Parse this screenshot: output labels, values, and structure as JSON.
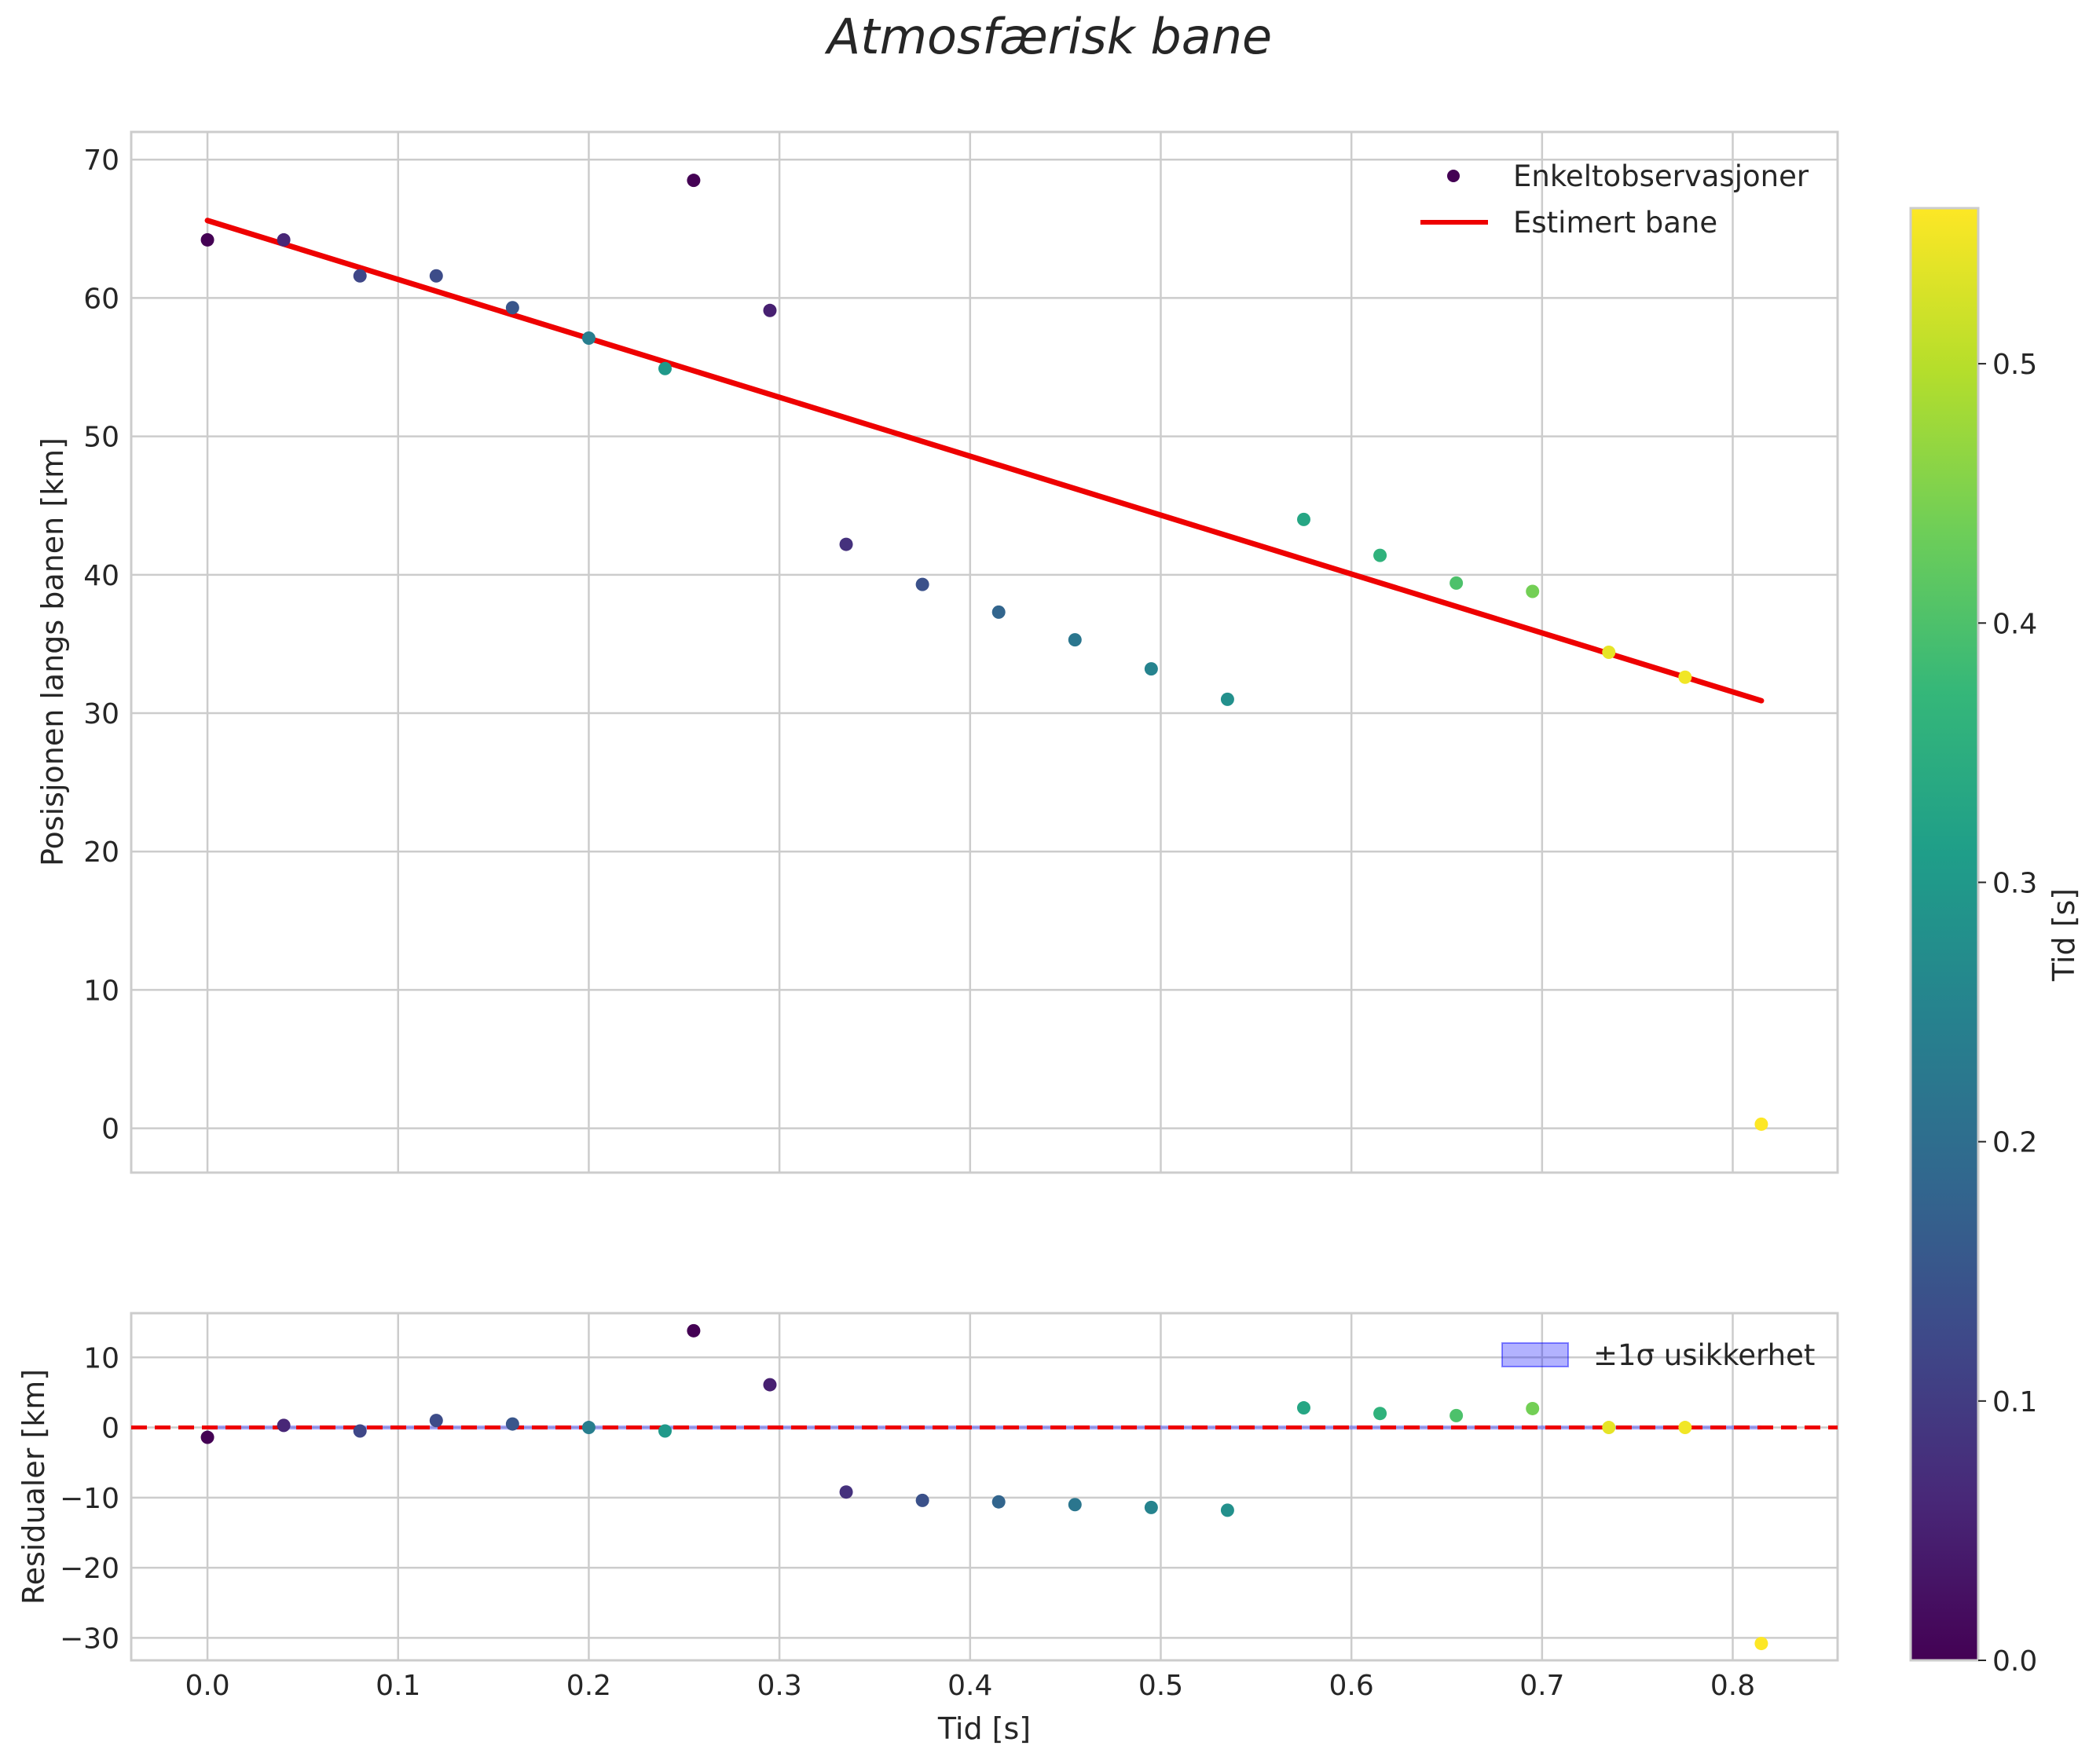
{
  "chart_data": {
    "type": "scatter",
    "title": "Atmosfærisk bane",
    "colormap": {
      "name": "viridis",
      "label": "Tid [s]",
      "range": [
        0.0,
        0.56
      ],
      "ticks": [
        0.0,
        0.1,
        0.2,
        0.3,
        0.4,
        0.5
      ],
      "tick_labels": [
        "0.0",
        "0.1",
        "0.2",
        "0.3",
        "0.4",
        "0.5"
      ],
      "stops": [
        "#440154",
        "#482878",
        "#3e4989",
        "#31688e",
        "#26828e",
        "#1f9e89",
        "#35b779",
        "#6ece58",
        "#b5de2b",
        "#fde725"
      ]
    },
    "panels": [
      {
        "id": "main",
        "ylabel": "Posisjonen langs banen [km]",
        "xlim": [
          -0.04,
          0.855
        ],
        "ylim": [
          -3.2,
          72
        ],
        "yticks": [
          0,
          10,
          20,
          30,
          40,
          50,
          60,
          70
        ],
        "ytick_labels": [
          "0",
          "10",
          "20",
          "30",
          "40",
          "50",
          "60",
          "70"
        ],
        "grid": true,
        "legend": "top-right",
        "series": [
          {
            "name": "Enkeltobservasjoner",
            "kind": "scatter",
            "points": [
              {
                "x": 0.0,
                "y": 64.2,
                "c": 0.0
              },
              {
                "x": 0.04,
                "y": 64.2,
                "c": 0.06
              },
              {
                "x": 0.08,
                "y": 61.6,
                "c": 0.12
              },
              {
                "x": 0.12,
                "y": 61.6,
                "c": 0.13
              },
              {
                "x": 0.16,
                "y": 59.3,
                "c": 0.15
              },
              {
                "x": 0.2,
                "y": 57.1,
                "c": 0.24
              },
              {
                "x": 0.24,
                "y": 54.9,
                "c": 0.3
              },
              {
                "x": 0.255,
                "y": 68.5,
                "c": 0.0
              },
              {
                "x": 0.295,
                "y": 59.1,
                "c": 0.05
              },
              {
                "x": 0.335,
                "y": 42.2,
                "c": 0.08
              },
              {
                "x": 0.375,
                "y": 39.3,
                "c": 0.14
              },
              {
                "x": 0.415,
                "y": 37.3,
                "c": 0.18
              },
              {
                "x": 0.455,
                "y": 35.3,
                "c": 0.22
              },
              {
                "x": 0.495,
                "y": 33.2,
                "c": 0.25
              },
              {
                "x": 0.535,
                "y": 31.0,
                "c": 0.28
              },
              {
                "x": 0.575,
                "y": 44.0,
                "c": 0.33
              },
              {
                "x": 0.615,
                "y": 41.4,
                "c": 0.36
              },
              {
                "x": 0.655,
                "y": 39.4,
                "c": 0.4
              },
              {
                "x": 0.695,
                "y": 38.8,
                "c": 0.44
              },
              {
                "x": 0.735,
                "y": 34.4,
                "c": 0.54
              },
              {
                "x": 0.775,
                "y": 32.6,
                "c": 0.55
              },
              {
                "x": 0.815,
                "y": 0.3,
                "c": 0.56
              }
            ]
          },
          {
            "name": "Estimert bane",
            "kind": "line",
            "color": "#ee0000",
            "x": [
              0.0,
              0.815
            ],
            "y": [
              65.6,
              30.9
            ]
          }
        ]
      },
      {
        "id": "residuals",
        "ylabel": "Residualer [km]",
        "xlabel": "Tid [s]",
        "xlim": [
          -0.04,
          0.855
        ],
        "ylim": [
          -33.2,
          16.3
        ],
        "xticks": [
          0.0,
          0.1,
          0.2,
          0.3,
          0.4,
          0.5,
          0.6,
          0.7,
          0.8
        ],
        "xtick_labels": [
          "0.0",
          "0.1",
          "0.2",
          "0.3",
          "0.4",
          "0.5",
          "0.6",
          "0.7",
          "0.8"
        ],
        "yticks": [
          -30,
          -20,
          -10,
          0,
          10
        ],
        "ytick_labels": [
          "−30",
          "−20",
          "−10",
          "0",
          "10"
        ],
        "grid": true,
        "legend": "top-right",
        "band": {
          "name": "±1σ usikkerhet",
          "x": [
            0.0,
            0.815
          ],
          "lower": -0.3,
          "upper": 0.3,
          "color": "#0000ff"
        },
        "zero_line": {
          "y": 0,
          "color": "#ee0000",
          "style": "dashed"
        },
        "series": [
          {
            "name": "Residualer",
            "kind": "scatter",
            "points": [
              {
                "x": 0.0,
                "y": -1.4,
                "c": 0.0
              },
              {
                "x": 0.04,
                "y": 0.3,
                "c": 0.06
              },
              {
                "x": 0.08,
                "y": -0.5,
                "c": 0.12
              },
              {
                "x": 0.12,
                "y": 1.0,
                "c": 0.13
              },
              {
                "x": 0.16,
                "y": 0.5,
                "c": 0.15
              },
              {
                "x": 0.2,
                "y": 0.0,
                "c": 0.24
              },
              {
                "x": 0.24,
                "y": -0.5,
                "c": 0.3
              },
              {
                "x": 0.255,
                "y": 13.8,
                "c": 0.0
              },
              {
                "x": 0.295,
                "y": 6.1,
                "c": 0.05
              },
              {
                "x": 0.335,
                "y": -9.2,
                "c": 0.08
              },
              {
                "x": 0.375,
                "y": -10.4,
                "c": 0.14
              },
              {
                "x": 0.415,
                "y": -10.6,
                "c": 0.18
              },
              {
                "x": 0.455,
                "y": -11.0,
                "c": 0.22
              },
              {
                "x": 0.495,
                "y": -11.4,
                "c": 0.25
              },
              {
                "x": 0.535,
                "y": -11.8,
                "c": 0.28
              },
              {
                "x": 0.575,
                "y": 2.8,
                "c": 0.33
              },
              {
                "x": 0.615,
                "y": 2.0,
                "c": 0.36
              },
              {
                "x": 0.655,
                "y": 1.7,
                "c": 0.4
              },
              {
                "x": 0.695,
                "y": 2.7,
                "c": 0.44
              },
              {
                "x": 0.735,
                "y": 0.0,
                "c": 0.54
              },
              {
                "x": 0.775,
                "y": 0.0,
                "c": 0.55
              },
              {
                "x": 0.815,
                "y": -30.8,
                "c": 0.56
              }
            ]
          }
        ]
      }
    ]
  }
}
